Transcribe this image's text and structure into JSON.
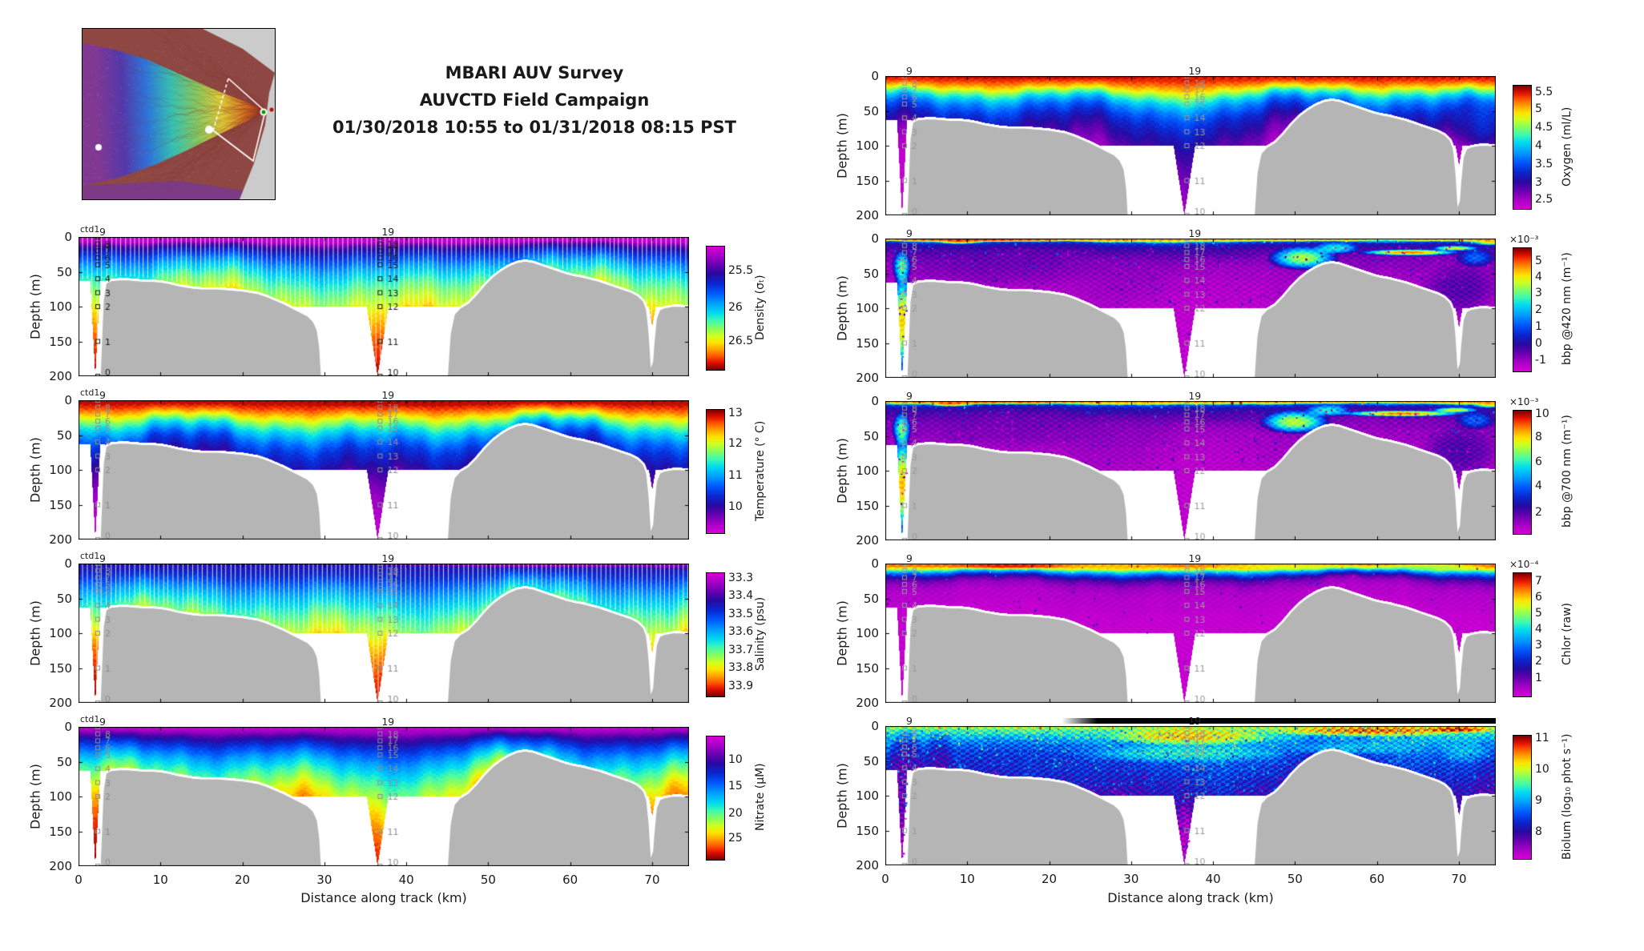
{
  "title": {
    "line1": "MBARI AUV Survey",
    "line2": "AUVCTD Field Campaign",
    "line3": "01/30/2018 10:55 to 01/31/2018 08:15 PST"
  },
  "axes": {
    "xlabel": "Distance along track (km)",
    "ylabel": "Depth (m)",
    "x_ticks": [
      0,
      10,
      20,
      30,
      40,
      50,
      60,
      70
    ],
    "y_ticks": [
      0,
      50,
      100,
      150,
      200
    ],
    "x_max": 74.5,
    "y_max": 200
  },
  "colors": {
    "background": "#ffffff",
    "seafloor": "#b5b5b5",
    "text": "#1a1a1a",
    "night_bar": "#000000"
  },
  "inset_map": {
    "present": true,
    "content": "bathymetry of survey region with AUV track",
    "track_color": "#ffffff"
  },
  "chart_data": {
    "type": "heatmap",
    "description": "Nine along-track depth section heatmaps from an AUV tow-yo survey; gray mask is the seafloor, two vertical CTD cast profiles reach 200 m",
    "ctd_annotation": "ctd1",
    "ctd_casts": [
      {
        "x_km": 2.05,
        "top_label": "9",
        "profile_labels": [
          "0",
          "1",
          "2",
          "3",
          "4",
          "5",
          "6",
          "7",
          "8"
        ],
        "label_depths_m": [
          200,
          150,
          100,
          80,
          60,
          40,
          30,
          20,
          10
        ]
      },
      {
        "x_km": 36.5,
        "top_label": "19",
        "profile_labels": [
          "10",
          "11",
          "12",
          "13",
          "14",
          "15",
          "16",
          "17",
          "18"
        ],
        "label_depths_m": [
          200,
          150,
          100,
          80,
          60,
          40,
          30,
          20,
          10
        ]
      }
    ],
    "seafloor_profile_km_m": [
      [
        0,
        210
      ],
      [
        2.55,
        210
      ],
      [
        2.95,
        92
      ],
      [
        3.3,
        67
      ],
      [
        4,
        63
      ],
      [
        5,
        62
      ],
      [
        6,
        62
      ],
      [
        7,
        63
      ],
      [
        8,
        64
      ],
      [
        9,
        64
      ],
      [
        10,
        65
      ],
      [
        11,
        67
      ],
      [
        12,
        70
      ],
      [
        13,
        72
      ],
      [
        14,
        74
      ],
      [
        15,
        75
      ],
      [
        16,
        75
      ],
      [
        17,
        75
      ],
      [
        18,
        76
      ],
      [
        19,
        77
      ],
      [
        20,
        78
      ],
      [
        21,
        80
      ],
      [
        22,
        82
      ],
      [
        23,
        86
      ],
      [
        24,
        91
      ],
      [
        25,
        96
      ],
      [
        26,
        102
      ],
      [
        27,
        108
      ],
      [
        28,
        114
      ],
      [
        28.7,
        122
      ],
      [
        29.2,
        135
      ],
      [
        29.5,
        160
      ],
      [
        29.75,
        210
      ],
      [
        44.9,
        210
      ],
      [
        45.3,
        140
      ],
      [
        45.8,
        112
      ],
      [
        46.5,
        103
      ],
      [
        47.5,
        96
      ],
      [
        48.5,
        84
      ],
      [
        49.5,
        70
      ],
      [
        50.5,
        58
      ],
      [
        51.5,
        49
      ],
      [
        52.5,
        42
      ],
      [
        53.5,
        37
      ],
      [
        54.5,
        35
      ],
      [
        55.5,
        37
      ],
      [
        56.5,
        41
      ],
      [
        57.5,
        45
      ],
      [
        58.5,
        49
      ],
      [
        59.5,
        53
      ],
      [
        60.5,
        56
      ],
      [
        61.5,
        58
      ],
      [
        62.5,
        61
      ],
      [
        63.5,
        64
      ],
      [
        64.5,
        68
      ],
      [
        65.5,
        72
      ],
      [
        66.5,
        76
      ],
      [
        67.5,
        80
      ],
      [
        68.3,
        85
      ],
      [
        69,
        93
      ],
      [
        69.4,
        106
      ],
      [
        69.7,
        140
      ],
      [
        69.95,
        188
      ],
      [
        70.15,
        155
      ],
      [
        70.45,
        118
      ],
      [
        70.9,
        105
      ],
      [
        71.5,
        102
      ],
      [
        72.5,
        100
      ],
      [
        73.5,
        100
      ],
      [
        74.6,
        101
      ]
    ],
    "night_bar": {
      "panel": "biolum",
      "start_km": 21.5,
      "end_km": 74.5,
      "color": "#000000"
    },
    "panels": [
      {
        "id": "density",
        "variable": "Density",
        "column": "left",
        "row": 0,
        "colorbar_label": "Density (σₜ)",
        "colorbar_ticks": [
          {
            "label": "25.5",
            "f": 0.2
          },
          {
            "label": "26",
            "f": 0.5
          },
          {
            "label": "26.5",
            "f": 0.77
          }
        ]
      },
      {
        "id": "temperature",
        "variable": "Temperature",
        "column": "left",
        "row": 1,
        "colorbar_label": "Temperature (° C)",
        "colorbar_ticks": [
          {
            "label": "13",
            "f": 0.03
          },
          {
            "label": "12",
            "f": 0.28
          },
          {
            "label": "11",
            "f": 0.54
          },
          {
            "label": "10",
            "f": 0.79
          }
        ]
      },
      {
        "id": "salinity",
        "variable": "Salinity",
        "column": "left",
        "row": 2,
        "colorbar_label": "Salinity (psu)",
        "colorbar_ticks": [
          {
            "label": "33.3",
            "f": 0.045
          },
          {
            "label": "33.4",
            "f": 0.19
          },
          {
            "label": "33.5",
            "f": 0.335
          },
          {
            "label": "33.6",
            "f": 0.48
          },
          {
            "label": "33.7",
            "f": 0.63
          },
          {
            "label": "33.8",
            "f": 0.775
          },
          {
            "label": "33.9",
            "f": 0.925
          }
        ]
      },
      {
        "id": "nitrate",
        "variable": "Nitrate",
        "column": "left",
        "row": 3,
        "colorbar_label": "Nitrate (μM)",
        "colorbar_ticks": [
          {
            "label": "10",
            "f": 0.195
          },
          {
            "label": "15",
            "f": 0.41
          },
          {
            "label": "20",
            "f": 0.63
          },
          {
            "label": "25",
            "f": 0.83
          }
        ]
      },
      {
        "id": "oxygen",
        "variable": "Oxygen",
        "column": "right",
        "row": 0,
        "colorbar_label": "Oxygen (ml/L)",
        "colorbar_ticks": [
          {
            "label": "5.5",
            "f": 0.058
          },
          {
            "label": "5",
            "f": 0.194
          },
          {
            "label": "4.5",
            "f": 0.344
          },
          {
            "label": "4",
            "f": 0.495
          },
          {
            "label": "3.5",
            "f": 0.645
          },
          {
            "label": "3",
            "f": 0.79
          },
          {
            "label": "2.5",
            "f": 0.93
          }
        ]
      },
      {
        "id": "bbp420",
        "variable": "bbp @420 nm",
        "column": "right",
        "row": 1,
        "colorbar_label": "bbp @420 nm (m⁻¹)",
        "colorbar_exp": "×10⁻³",
        "colorbar_ticks": [
          {
            "label": "5",
            "f": 0.108
          },
          {
            "label": "4",
            "f": 0.243
          },
          {
            "label": "3",
            "f": 0.372
          },
          {
            "label": "2",
            "f": 0.505
          },
          {
            "label": "1",
            "f": 0.64
          },
          {
            "label": "0",
            "f": 0.78
          },
          {
            "label": "-1",
            "f": 0.914
          }
        ]
      },
      {
        "id": "bbp700",
        "variable": "bbp @700 nm",
        "column": "right",
        "row": 2,
        "colorbar_label": "bbp @700 nm (m⁻¹)",
        "colorbar_exp": "×10⁻³",
        "colorbar_ticks": [
          {
            "label": "10",
            "f": 0.032
          },
          {
            "label": "8",
            "f": 0.22
          },
          {
            "label": "6",
            "f": 0.42
          },
          {
            "label": "4",
            "f": 0.62
          },
          {
            "label": "2",
            "f": 0.834
          }
        ]
      },
      {
        "id": "chlor",
        "variable": "Chlor",
        "column": "right",
        "row": 3,
        "colorbar_label": "Chlor (raw)",
        "colorbar_exp": "×10⁻⁴",
        "colorbar_ticks": [
          {
            "label": "7",
            "f": 0.071
          },
          {
            "label": "6",
            "f": 0.2
          },
          {
            "label": "5",
            "f": 0.33
          },
          {
            "label": "4",
            "f": 0.46
          },
          {
            "label": "3",
            "f": 0.59
          },
          {
            "label": "2",
            "f": 0.72
          },
          {
            "label": "1",
            "f": 0.857
          }
        ]
      },
      {
        "id": "biolum",
        "variable": "Biolum",
        "column": "right",
        "row": 4,
        "colorbar_label": "Biolum (log₁₀ phot s⁻¹)",
        "colorbar_ticks": [
          {
            "label": "11",
            "f": 0.026
          },
          {
            "label": "10",
            "f": 0.276
          },
          {
            "label": "9",
            "f": 0.533
          },
          {
            "label": "8",
            "f": 0.787
          }
        ]
      }
    ]
  }
}
